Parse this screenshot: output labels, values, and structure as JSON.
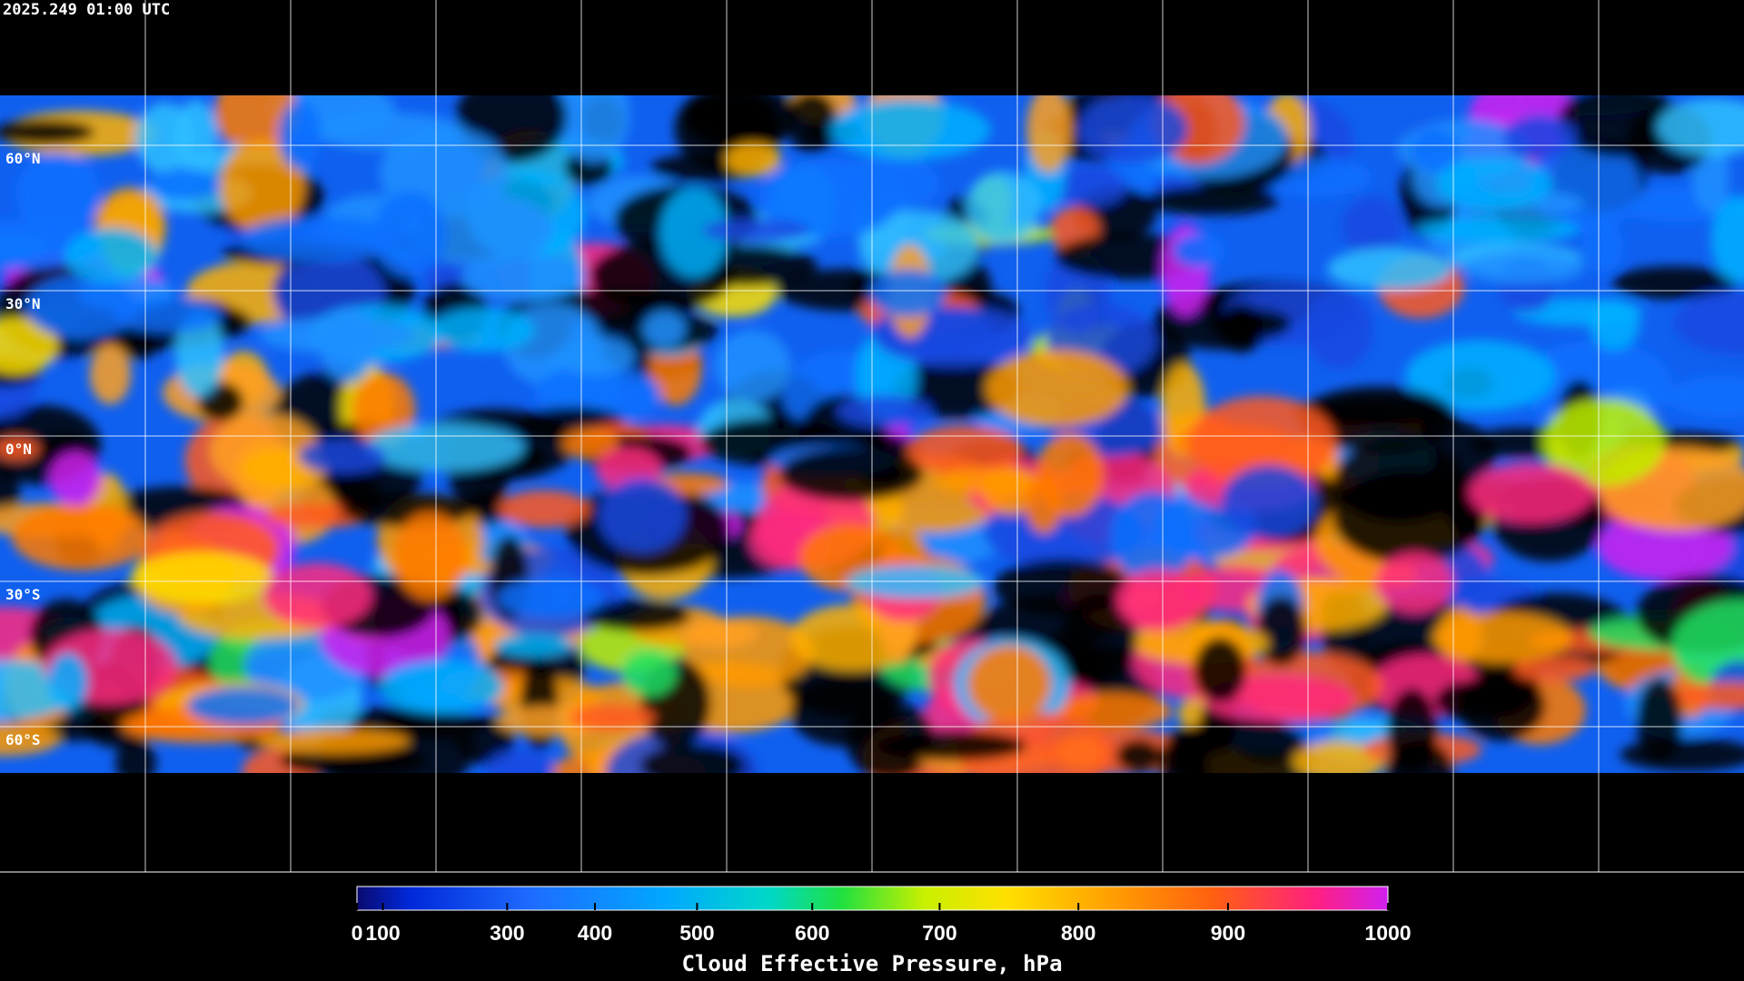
{
  "header": {
    "timestamp": "2025.249 01:00 UTC"
  },
  "map": {
    "latitude_labels": [
      "60°N",
      "30°N",
      "0°N",
      "30°S",
      "60°S"
    ]
  },
  "colorbar": {
    "type": "colorbar",
    "title": "Cloud Effective Pressure, hPa",
    "xlim": [
      0,
      1000
    ],
    "xticks": [
      0,
      100,
      300,
      400,
      500,
      600,
      700,
      800,
      900,
      1000
    ]
  }
}
